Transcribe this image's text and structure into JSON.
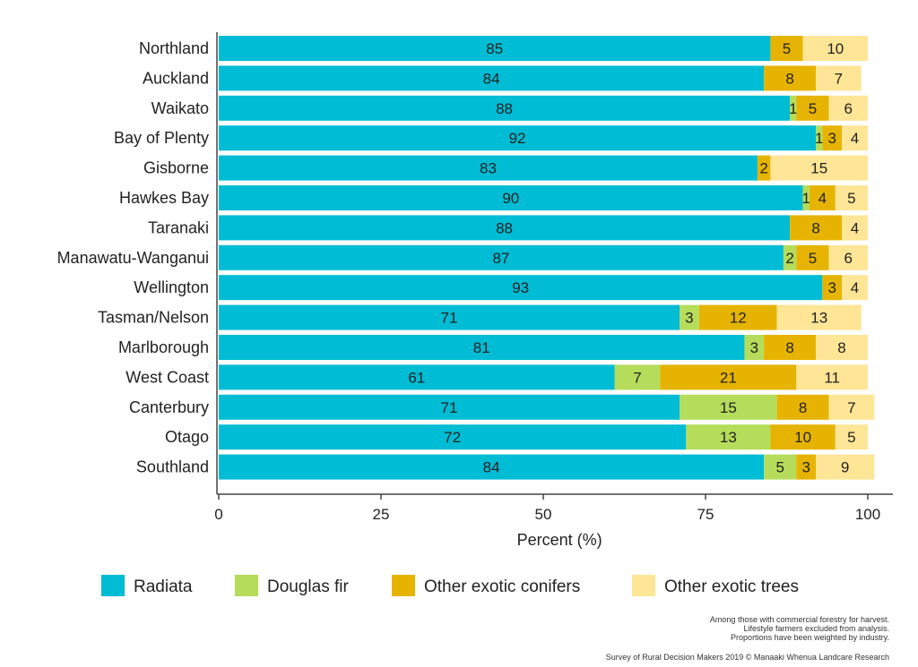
{
  "chart_data": {
    "type": "bar",
    "orientation": "horizontal",
    "stacked": true,
    "categories": [
      "Northland",
      "Auckland",
      "Waikato",
      "Bay of Plenty",
      "Gisborne",
      "Hawkes Bay",
      "Taranaki",
      "Manawatu-Wanganui",
      "Wellington",
      "Tasman/Nelson",
      "Marlborough",
      "West Coast",
      "Canterbury",
      "Otago",
      "Southland"
    ],
    "series": [
      {
        "name": "Radiata",
        "color": "#00BCD4",
        "values": [
          85,
          84,
          88,
          92,
          83,
          90,
          88,
          87,
          93,
          71,
          81,
          61,
          71,
          72,
          84
        ]
      },
      {
        "name": "Douglas fir",
        "color": "#B5DC5A",
        "values": [
          0,
          0,
          1,
          1,
          0,
          1,
          0,
          2,
          0,
          3,
          3,
          7,
          15,
          13,
          5
        ]
      },
      {
        "name": "Other exotic conifers",
        "color": "#E6B400",
        "values": [
          5,
          8,
          5,
          3,
          2,
          4,
          8,
          5,
          3,
          12,
          8,
          21,
          8,
          10,
          3
        ]
      },
      {
        "name": "Other exotic trees",
        "color": "#FFE596",
        "values": [
          10,
          7,
          6,
          4,
          15,
          5,
          4,
          6,
          4,
          13,
          8,
          11,
          7,
          5,
          9
        ]
      }
    ],
    "xlabel": "Percent (%)",
    "ylabel": "",
    "xlim": [
      0,
      100
    ],
    "xticks": [
      0,
      25,
      50,
      75,
      100
    ],
    "grid": false,
    "legend_position": "bottom",
    "notes": [
      "Among those with commercial forestry for harvest.",
      "Lifestyle farmers excluded from analysis.",
      "Proportions have been weighted by industry."
    ],
    "source": "Survey of Rural Decision Makers 2019 © Manaaki Whenua Landcare Research"
  }
}
